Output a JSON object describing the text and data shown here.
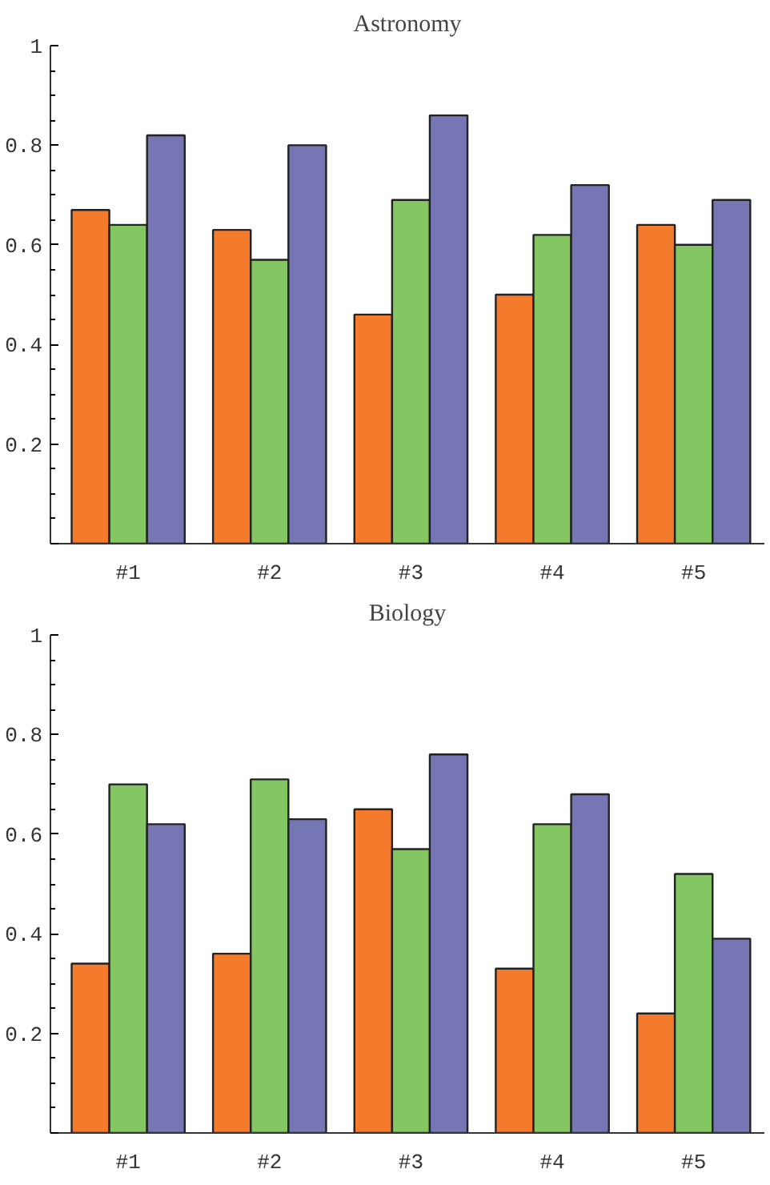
{
  "chart_data": [
    {
      "type": "bar",
      "title": "Astronomy",
      "categories": [
        "#1",
        "#2",
        "#3",
        "#4",
        "#5"
      ],
      "series": [
        {
          "color": "#f47b2c",
          "values": [
            0.67,
            0.63,
            0.46,
            0.5,
            0.64
          ]
        },
        {
          "color": "#83c662",
          "values": [
            0.64,
            0.57,
            0.69,
            0.62,
            0.6
          ]
        },
        {
          "color": "#7776b5",
          "values": [
            0.82,
            0.8,
            0.86,
            0.72,
            0.69
          ]
        }
      ],
      "ylim": [
        0,
        1
      ],
      "yticks": [
        {
          "value": 0,
          "label": null
        },
        0.2,
        0.4,
        0.6,
        0.8,
        1
      ]
    },
    {
      "type": "bar",
      "title": "Biology",
      "categories": [
        "#1",
        "#2",
        "#3",
        "#4",
        "#5"
      ],
      "series": [
        {
          "color": "#f47b2c",
          "values": [
            0.34,
            0.36,
            0.65,
            0.33,
            0.24
          ]
        },
        {
          "color": "#83c662",
          "values": [
            0.7,
            0.71,
            0.57,
            0.62,
            0.52
          ]
        },
        {
          "color": "#7776b5",
          "values": [
            0.62,
            0.63,
            0.76,
            0.68,
            0.39
          ]
        }
      ],
      "ylim": [
        0,
        1
      ],
      "yticks": [
        {
          "value": 0,
          "label": null
        },
        0.2,
        0.4,
        0.6,
        0.8,
        1
      ]
    }
  ]
}
